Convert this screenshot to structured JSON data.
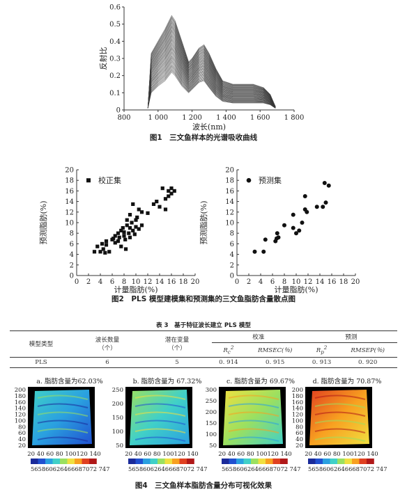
{
  "figure1": {
    "caption": "图1　三文鱼样本的光谱吸收曲线",
    "chart_data": {
      "type": "line",
      "ylabel": "反射比",
      "xlabel": "波长(nm)",
      "xlim": [
        800,
        1800
      ],
      "ylim": [
        0,
        0.6
      ],
      "x_ticks": [
        "800",
        "1 000",
        "1 200",
        "1 400",
        "1 600",
        "1 800"
      ],
      "y_ticks": [
        "0",
        "0.1",
        "0.2",
        "0.3",
        "0.4",
        "0.5",
        "0.6"
      ],
      "curve_count": 40,
      "representative_series": [
        {
          "x": [
            940,
            960,
            1000,
            1040,
            1080,
            1100,
            1140,
            1180,
            1200,
            1240,
            1270,
            1300,
            1340,
            1380,
            1440,
            1500,
            1560,
            1620,
            1660,
            1690
          ],
          "y": [
            0.01,
            0.33,
            0.4,
            0.47,
            0.55,
            0.52,
            0.4,
            0.28,
            0.3,
            0.36,
            0.38,
            0.33,
            0.24,
            0.17,
            0.15,
            0.15,
            0.15,
            0.13,
            0.09,
            0.02
          ]
        },
        {
          "x": [
            940,
            960,
            1000,
            1040,
            1080,
            1100,
            1140,
            1180,
            1200,
            1240,
            1270,
            1300,
            1340,
            1380,
            1440,
            1500,
            1560,
            1620,
            1660,
            1690
          ],
          "y": [
            0.01,
            0.1,
            0.14,
            0.17,
            0.22,
            0.2,
            0.14,
            0.1,
            0.12,
            0.16,
            0.17,
            0.13,
            0.08,
            0.05,
            0.04,
            0.04,
            0.04,
            0.04,
            0.03,
            0.01
          ]
        }
      ]
    }
  },
  "figure2": {
    "caption": "图2　PLS 模型建模集和预测集的三文鱼脂肪含量散点图",
    "charts": [
      {
        "type": "scatter",
        "legend": "校正集",
        "marker": "square",
        "xlabel": "计量脂肪(%)",
        "ylabel": "预测脂肪(%)",
        "xlim": [
          0,
          20
        ],
        "ylim": [
          0,
          20
        ],
        "x_ticks": [
          "0",
          "2",
          "4",
          "6",
          "8",
          "10",
          "12",
          "14",
          "16",
          "18",
          "20"
        ],
        "y_ticks": [
          "0",
          "2",
          "4",
          "6",
          "8",
          "10",
          "12",
          "14",
          "16",
          "18",
          "20"
        ],
        "points": [
          [
            3.0,
            4.5
          ],
          [
            3.5,
            5.5
          ],
          [
            4.0,
            4.5
          ],
          [
            4.3,
            6.0
          ],
          [
            4.5,
            5.0
          ],
          [
            4.8,
            4.3
          ],
          [
            5.0,
            5.8
          ],
          [
            5.0,
            6.5
          ],
          [
            5.5,
            4.5
          ],
          [
            6.0,
            6.8
          ],
          [
            6.2,
            7.0
          ],
          [
            6.5,
            7.5
          ],
          [
            6.5,
            6.2
          ],
          [
            7.0,
            8.0
          ],
          [
            7.0,
            6.5
          ],
          [
            7.2,
            7.2
          ],
          [
            7.5,
            8.5
          ],
          [
            7.5,
            5.5
          ],
          [
            7.8,
            9.0
          ],
          [
            8.0,
            7.5
          ],
          [
            8.0,
            8.2
          ],
          [
            8.2,
            6.8
          ],
          [
            8.3,
            5.0
          ],
          [
            8.5,
            9.5
          ],
          [
            8.5,
            10.5
          ],
          [
            8.8,
            8.0
          ],
          [
            9.0,
            9.0
          ],
          [
            9.0,
            7.2
          ],
          [
            9.0,
            11.5
          ],
          [
            9.3,
            10.0
          ],
          [
            9.5,
            8.5
          ],
          [
            9.5,
            13.5
          ],
          [
            9.8,
            7.8
          ],
          [
            10.0,
            9.2
          ],
          [
            10.0,
            10.5
          ],
          [
            10.2,
            11.0
          ],
          [
            10.5,
            12.5
          ],
          [
            10.5,
            8.8
          ],
          [
            11.0,
            9.5
          ],
          [
            11.0,
            12.0
          ],
          [
            12.0,
            11.8
          ],
          [
            13.0,
            13.5
          ],
          [
            13.5,
            14.0
          ],
          [
            14.0,
            13.0
          ],
          [
            14.5,
            16.5
          ],
          [
            15.0,
            14.5
          ],
          [
            15.5,
            15.0
          ],
          [
            15.5,
            16.0
          ],
          [
            16.0,
            16.5
          ],
          [
            16.0,
            15.5
          ],
          [
            16.5,
            16.0
          ],
          [
            15.0,
            12.5
          ]
        ]
      },
      {
        "type": "scatter",
        "legend": "预测集",
        "marker": "circle",
        "xlabel": "计量脂肪(%)",
        "ylabel": "预测脂肪(%)",
        "xlim": [
          0,
          20
        ],
        "ylim": [
          0,
          20
        ],
        "x_ticks": [
          "0",
          "2",
          "4",
          "6",
          "8",
          "10",
          "12",
          "14",
          "16",
          "18",
          "20"
        ],
        "y_ticks": [
          "0",
          "2",
          "4",
          "6",
          "8",
          "10",
          "12",
          "14",
          "16",
          "18",
          "20"
        ],
        "points": [
          [
            3.0,
            4.5
          ],
          [
            4.5,
            4.5
          ],
          [
            4.8,
            6.8
          ],
          [
            6.5,
            6.5
          ],
          [
            6.7,
            7.0
          ],
          [
            6.8,
            8.0
          ],
          [
            7.0,
            7.2
          ],
          [
            8.0,
            9.5
          ],
          [
            9.5,
            11.5
          ],
          [
            9.5,
            9.0
          ],
          [
            10.0,
            8.0
          ],
          [
            10.5,
            8.5
          ],
          [
            11.0,
            10.0
          ],
          [
            11.5,
            12.5
          ],
          [
            11.5,
            15.0
          ],
          [
            11.8,
            12.0
          ],
          [
            13.5,
            13.0
          ],
          [
            14.5,
            13.0
          ],
          [
            14.8,
            17.5
          ],
          [
            15.0,
            13.8
          ],
          [
            15.5,
            17.0
          ]
        ]
      }
    ]
  },
  "table3": {
    "title": "表 3　基于特征波长建立 PLS 模型",
    "headers": {
      "model": "模型类型",
      "nwave": "波长数量",
      "nwave_unit": "（个）",
      "latent": "潜在变量",
      "latent_unit": "（个）",
      "calib": "校准",
      "pred": "预测",
      "rc": "R",
      "rc_sub": "c",
      "rmsec": "RMSEC(％)",
      "rp": "R",
      "rp_sub": "p",
      "rmsep": "RMSEP(％)"
    },
    "row": {
      "model": "PLS",
      "nwave": "6",
      "latent": "5",
      "rc": "0. 914",
      "rmsec": "0. 915",
      "rp": "0. 913",
      "rmsep": "0. 920"
    }
  },
  "figure4": {
    "caption": "图4　三文鱼样本脂肪含量分布可视化效果",
    "colorbar_labels": "565860626466687072 7476",
    "colors": {
      "low": "#2a3cb0",
      "mid": "#4fc3d8",
      "high": "#d62a1e"
    },
    "panels": [
      {
        "title": "a. 脂肪含量为62.03%",
        "y_ticks": [
          "200",
          "180",
          "160",
          "140",
          "120",
          "100",
          "80",
          "60",
          "40",
          "20"
        ],
        "x_ticks": "20 40 60 80 100120 140",
        "level": 0.42
      },
      {
        "title": "b. 脂肪含量为 67.32%",
        "y_ticks": [
          "250",
          "200",
          "150",
          "100",
          "50"
        ],
        "x_ticks": "20 40 60 80 100120 140",
        "level": 0.55
      },
      {
        "title": "c. 脂肪含量为 69.67%",
        "y_ticks": [
          "300",
          "250",
          "200",
          "150",
          "100",
          "50"
        ],
        "x_ticks": "20 40 60 80 100120 140",
        "level": 0.68
      },
      {
        "title": "d. 脂肪含量为 70.87%",
        "y_ticks": [
          "200",
          "180",
          "160",
          "140",
          "120",
          "100",
          "80",
          "60",
          "40",
          "20"
        ],
        "x_ticks": "20 40 60 80 100120 140",
        "level": 0.82
      }
    ]
  }
}
